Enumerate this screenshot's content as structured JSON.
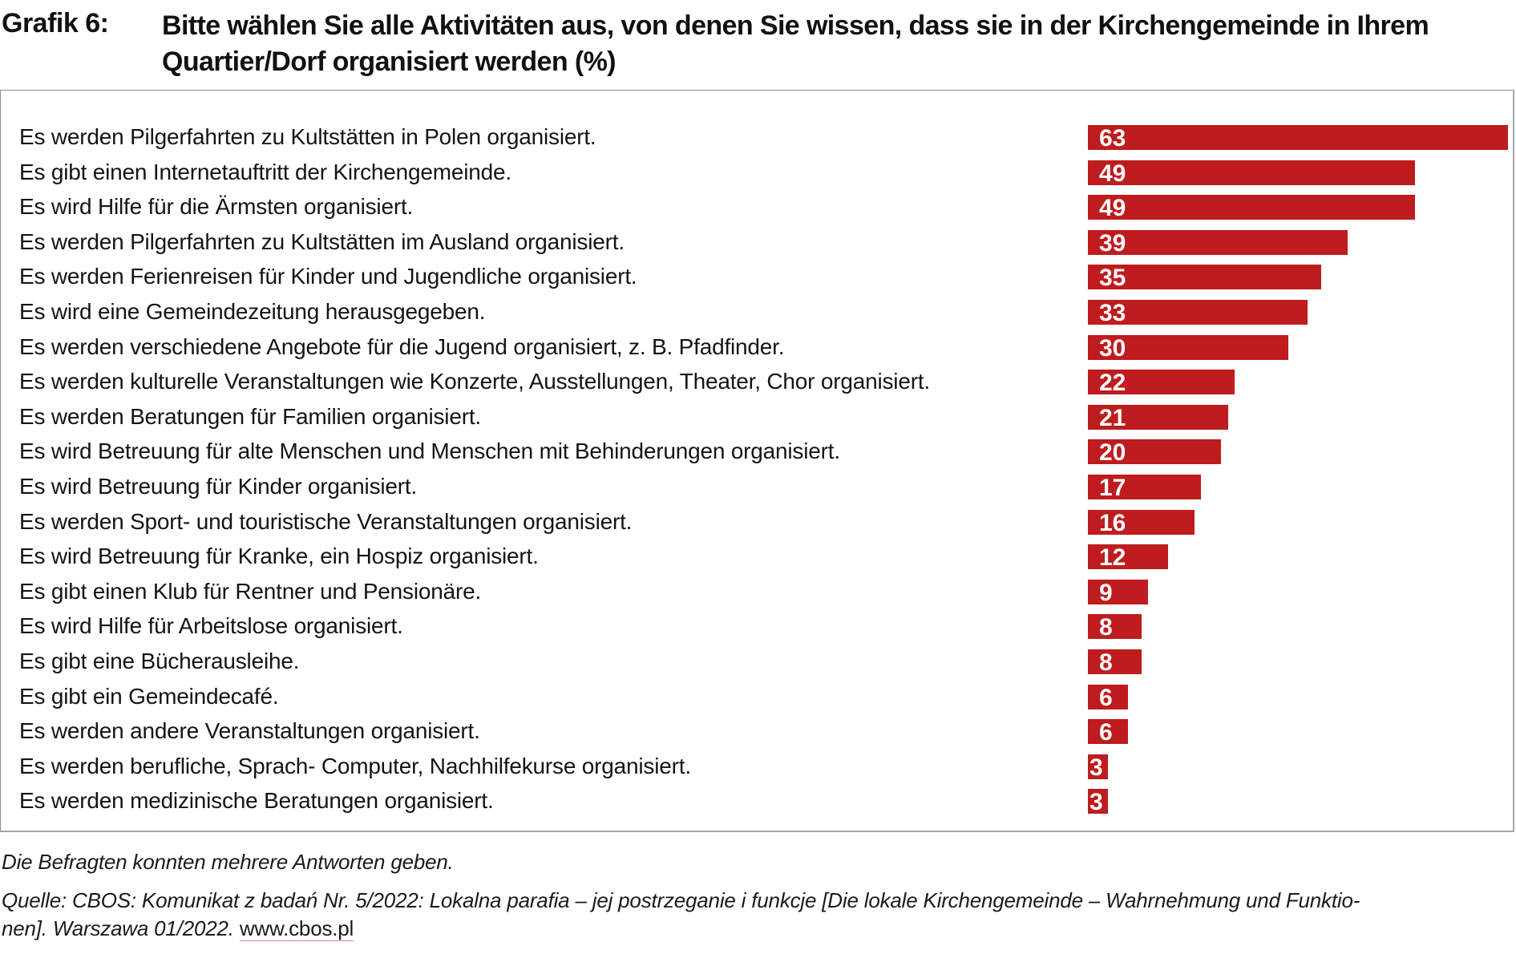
{
  "header": {
    "figure_label": "Grafik 6:",
    "title": "Bitte wählen Sie alle Aktivitäten aus, von denen Sie wissen, dass sie in der Kirchengemeinde in Ihrem Quartier/Dorf organisiert werden (%)"
  },
  "colors": {
    "bar": "#be1c1e",
    "bar_label": "#ffffff"
  },
  "chart_data": {
    "type": "bar",
    "orientation": "horizontal",
    "title": "Bitte wählen Sie alle Aktivitäten aus, von denen Sie wissen, dass sie in der Kirchengemeinde in Ihrem Quartier/Dorf organisiert werden (%)",
    "xlabel": "",
    "ylabel": "",
    "unit": "%",
    "xlim": [
      0,
      63
    ],
    "grid": false,
    "legend": "none",
    "data_labels": "inside-left",
    "categories": [
      "Es werden Pilgerfahrten zu Kultstätten in Polen organisiert.",
      "Es gibt einen Internetauftritt der Kirchengemeinde.",
      "Es wird Hilfe für die Ärmsten organisiert.",
      "Es werden Pilgerfahrten zu Kultstätten im Ausland organisiert.",
      "Es werden Ferienreisen für Kinder und Jugendliche organisiert.",
      "Es wird eine Gemeindezeitung herausgegeben.",
      "Es werden verschiedene Angebote für die Jugend organisiert, z. B. Pfadfinder.",
      "Es werden kulturelle Veranstaltungen wie Konzerte, Ausstellungen, Theater, Chor organisiert.",
      "Es werden Beratungen für Familien organisiert.",
      "Es wird Betreuung für alte Menschen und Menschen mit Behinderungen organisiert.",
      "Es wird Betreuung für Kinder organisiert.",
      "Es werden Sport- und touristische Veranstaltungen organisiert.",
      "Es wird Betreuung für Kranke, ein Hospiz organisiert.",
      "Es gibt einen Klub für Rentner und Pensionäre.",
      "Es wird Hilfe für Arbeitslose organisiert.",
      "Es gibt eine Bücherausleihe.",
      "Es gibt ein Gemeindecafé.",
      "Es werden andere Veranstaltungen organisiert.",
      "Es werden berufliche, Sprach- Computer, Nachhilfekurse organisiert.",
      "Es werden medizinische Beratungen organisiert."
    ],
    "values": [
      63,
      49,
      49,
      39,
      35,
      33,
      30,
      22,
      21,
      20,
      17,
      16,
      12,
      9,
      8,
      8,
      6,
      6,
      3,
      3
    ]
  },
  "footer": {
    "note": "Die Befragten konnten mehrere Antworten geben.",
    "source_line1": "Quelle: CBOS: Komunikat z badań Nr. 5/2022: Lokalna parafia – jej postrzeganie i funkcje [Die lokale Kirchengemeinde – Wahrnehmung und Funktio-",
    "source_line2_prefix": "nen]. Warszawa 01/2022.",
    "source_link": "www.cbos.pl"
  }
}
